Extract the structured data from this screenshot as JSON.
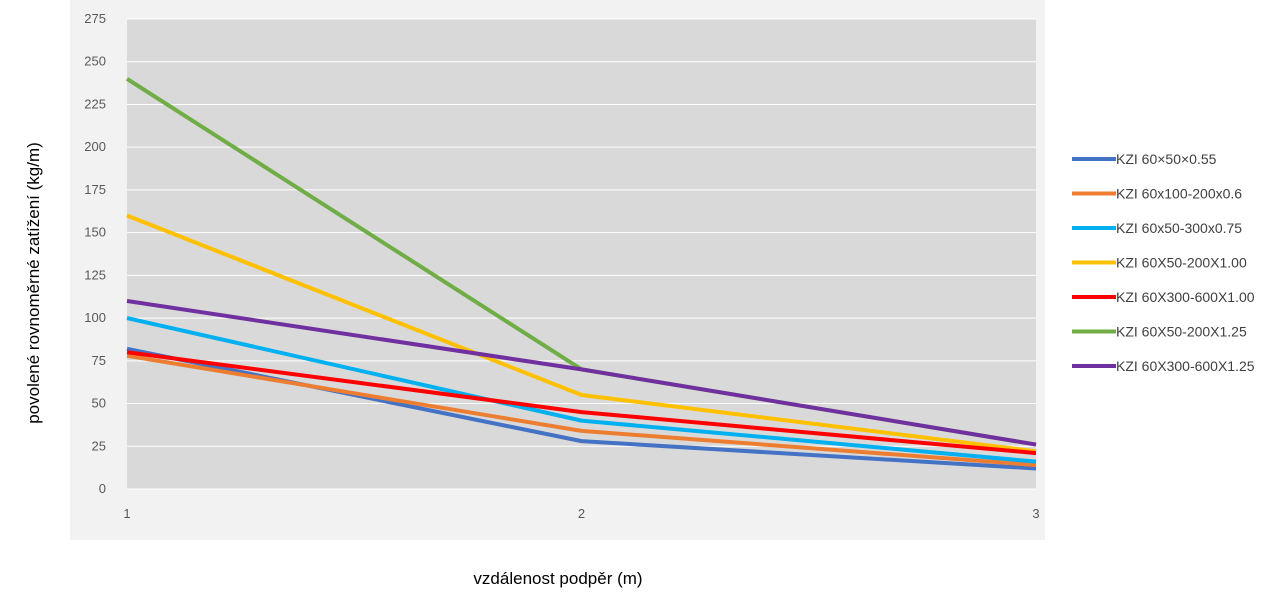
{
  "chart_data": {
    "type": "line",
    "title": "",
    "xlabel": "vzdálenost podpěr (m)",
    "ylabel": "povolené rovnoměrné zatížení (kg/m)",
    "x": [
      1,
      2,
      3
    ],
    "x_ticks": [
      "1",
      "2",
      "3"
    ],
    "ylim": [
      0,
      275
    ],
    "y_ticks": [
      "0",
      "25",
      "50",
      "75",
      "100",
      "125",
      "150",
      "175",
      "200",
      "225",
      "250",
      "275"
    ],
    "grid": true,
    "legend": "right",
    "plot_background": "#d9d9d9",
    "series": [
      {
        "name": "KZI 60×50×0.55",
        "color": "#4472c4",
        "values": [
          82,
          28,
          12
        ]
      },
      {
        "name": "KZI 60x100-200x0.6",
        "color": "#ed7d31",
        "values": [
          78,
          34,
          14
        ]
      },
      {
        "name": "KZI 60x50-300x0.75",
        "color": "#00b0f0",
        "values": [
          100,
          40,
          16
        ]
      },
      {
        "name": "KZI 60X50-200X1.00",
        "color": "#ffc000",
        "values": [
          160,
          55,
          22
        ]
      },
      {
        "name": "KZI 60X300-600X1.00",
        "color": "#ff0000",
        "values": [
          80,
          45,
          21
        ]
      },
      {
        "name": "KZI 60X50-200X1.25",
        "color": "#70ad47",
        "values": [
          240,
          70,
          26
        ]
      },
      {
        "name": "KZI 60X300-600X1.25",
        "color": "#7030a0",
        "values": [
          110,
          70,
          26
        ]
      }
    ]
  }
}
